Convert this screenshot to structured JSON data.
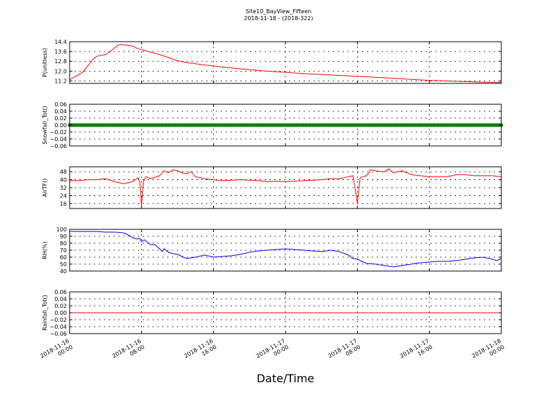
{
  "figure": {
    "title_line1": "Site10_BayView_Fifteen",
    "title_line2": "2018-11-18 - (2018-322)",
    "xlabel": "Date/Time"
  },
  "chart_data": [
    {
      "type": "line",
      "ylabel": "P(unitless)",
      "ylim": [
        11.0,
        14.4
      ],
      "yticks": [
        11.2,
        12.0,
        12.8,
        13.6,
        14.4
      ],
      "ytick_labels": [
        "11.2",
        "12.0",
        "12.8",
        "13.6",
        "14.4"
      ],
      "xlim": [
        0,
        48
      ],
      "grid": true,
      "series": [
        {
          "color": "#ff0000",
          "x": [
            0,
            1,
            1.5,
            2,
            2.5,
            3,
            3.5,
            4,
            4.5,
            5,
            5.5,
            6,
            6.5,
            7,
            7.5,
            8,
            9,
            10,
            11,
            12,
            13,
            14,
            15,
            16,
            18,
            20,
            22,
            24,
            26,
            28,
            30,
            32,
            34,
            36,
            38,
            40,
            42,
            44,
            46,
            48
          ],
          "y": [
            11.3,
            11.7,
            11.95,
            12.4,
            12.9,
            13.2,
            13.3,
            13.35,
            13.6,
            13.9,
            14.15,
            14.15,
            14.1,
            14.05,
            13.85,
            13.75,
            13.55,
            13.35,
            13.1,
            12.85,
            12.7,
            12.6,
            12.5,
            12.42,
            12.25,
            12.12,
            12.0,
            11.9,
            11.8,
            11.72,
            11.65,
            11.58,
            11.5,
            11.42,
            11.33,
            11.25,
            11.2,
            11.15,
            11.1,
            11.08
          ]
        }
      ]
    },
    {
      "type": "scatter",
      "ylabel": "Snowfall_Tot()",
      "ylim": [
        -0.06,
        0.06
      ],
      "yticks": [
        -0.06,
        -0.04,
        -0.02,
        0.0,
        0.02,
        0.04,
        0.06
      ],
      "ytick_labels": [
        "−0.06",
        "−0.04",
        "−0.02",
        "0.00",
        "0.02",
        "0.04",
        "0.06"
      ],
      "xlim": [
        0,
        48
      ],
      "grid": true,
      "series": [
        {
          "color": "#007f00",
          "constant_y": 0.0,
          "x_range": [
            0,
            48
          ],
          "x_step": 0.25
        }
      ]
    },
    {
      "type": "line",
      "ylabel": "AirTF()",
      "ylim": [
        11,
        53
      ],
      "yticks": [
        16,
        24,
        32,
        40,
        48
      ],
      "ytick_labels": [
        "16",
        "24",
        "32",
        "40",
        "48"
      ],
      "xlim": [
        0,
        48
      ],
      "grid": true,
      "series": [
        {
          "color": "#ff0000",
          "x": [
            0,
            1,
            2,
            3,
            4,
            5,
            6,
            7,
            7.6,
            7.8,
            8.0,
            8.2,
            8.5,
            9,
            10,
            10.5,
            11,
            11.5,
            12,
            12.5,
            13,
            13.5,
            14,
            15,
            16,
            17,
            18,
            19,
            20,
            21,
            22,
            23,
            24,
            25,
            26,
            27,
            28,
            29,
            30,
            31,
            31.5,
            31.8,
            32.0,
            32.3,
            33,
            33.5,
            34,
            35,
            35.5,
            36,
            37,
            37.5,
            38,
            39,
            40,
            41,
            42,
            43,
            44,
            45,
            46,
            47,
            48
          ],
          "y": [
            39,
            39,
            40,
            40,
            41,
            38,
            36,
            38,
            42,
            38,
            14,
            38,
            43,
            41,
            44,
            49,
            47,
            50,
            49,
            47,
            46,
            48,
            43,
            41,
            40,
            39,
            39.5,
            40,
            39.5,
            39,
            38,
            38.5,
            38,
            38.5,
            39,
            39.5,
            40,
            41,
            41,
            43,
            44,
            28,
            16,
            42,
            44,
            50,
            49,
            48,
            51,
            47,
            49,
            47,
            45,
            44,
            43,
            43,
            43,
            45,
            45,
            44,
            44,
            44,
            43
          ]
        }
      ]
    },
    {
      "type": "line",
      "ylabel": "RH(%)",
      "ylim": [
        40,
        100
      ],
      "yticks": [
        40,
        50,
        60,
        70,
        80,
        90,
        100
      ],
      "ytick_labels": [
        "40",
        "50",
        "60",
        "70",
        "80",
        "90",
        "100"
      ],
      "xlim": [
        0,
        48
      ],
      "grid": true,
      "series": [
        {
          "color": "#0000ff",
          "x": [
            0,
            1,
            2,
            3,
            4,
            5,
            6,
            6.5,
            7,
            7.5,
            7.8,
            8.0,
            8.3,
            8.7,
            9,
            9.5,
            10,
            10.3,
            10.5,
            11,
            11.5,
            12,
            13,
            14,
            15,
            16,
            17,
            18,
            19,
            20,
            21,
            22,
            23,
            24,
            25,
            26,
            27,
            28,
            29,
            30,
            31,
            31.5,
            32,
            32.5,
            33,
            34,
            35,
            36,
            37,
            38,
            39,
            40,
            41,
            42,
            43,
            44,
            45,
            46,
            47,
            47.5,
            48
          ],
          "y": [
            97,
            97,
            97,
            97,
            96,
            96,
            95,
            92,
            88,
            86,
            87,
            82,
            85,
            81,
            78,
            78,
            72,
            68,
            72,
            67,
            65,
            64,
            58,
            60,
            63,
            60,
            61,
            62,
            64,
            67,
            69,
            70,
            71,
            72,
            71,
            70,
            69,
            68,
            70,
            68,
            63,
            58,
            57,
            54,
            51,
            50,
            48,
            46,
            48,
            50,
            52,
            53,
            54,
            54,
            55,
            57,
            59,
            60,
            57,
            55,
            58
          ]
        }
      ]
    },
    {
      "type": "line",
      "ylabel": "Rainfall_Tot()",
      "ylim": [
        -0.06,
        0.06
      ],
      "yticks": [
        -0.06,
        -0.04,
        -0.02,
        0.0,
        0.02,
        0.04,
        0.06
      ],
      "ytick_labels": [
        "−0.06",
        "−0.04",
        "−0.02",
        "0.00",
        "0.02",
        "0.04",
        "0.06"
      ],
      "xlim": [
        0,
        48
      ],
      "grid": true,
      "series": [
        {
          "color": "#ff0000",
          "x": [
            0,
            48
          ],
          "y": [
            0.0,
            0.0
          ]
        }
      ]
    }
  ],
  "xaxis": {
    "ticks": [
      0,
      8,
      16,
      24,
      32,
      40,
      48
    ],
    "tick_labels": [
      [
        "2018-11-16",
        "00:00"
      ],
      [
        "2018-11-16",
        "08:00"
      ],
      [
        "2018-11-16",
        "16:00"
      ],
      [
        "2018-11-17",
        "00:00"
      ],
      [
        "2018-11-17",
        "08:00"
      ],
      [
        "2018-11-17",
        "16:00"
      ],
      [
        "2018-11-18",
        "00:00"
      ]
    ]
  }
}
